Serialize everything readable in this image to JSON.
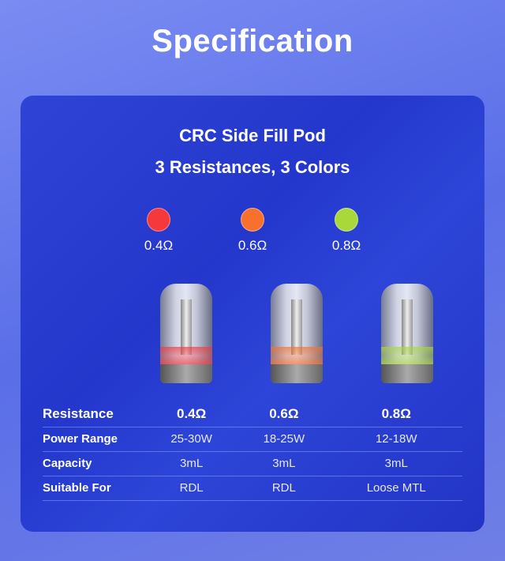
{
  "title": "Specification",
  "card": {
    "subtitle1": "CRC Side Fill Pod",
    "subtitle2": "3 Resistances, 3 Colors"
  },
  "variants": [
    {
      "resistance": "0.4Ω",
      "color": "#f5383c"
    },
    {
      "resistance": "0.6Ω",
      "color": "#f7702e"
    },
    {
      "resistance": "0.8Ω",
      "color": "#a8d83a"
    }
  ],
  "pod_logo": "NPU",
  "table": {
    "rows": [
      {
        "label": "Resistance",
        "values": [
          "0.4Ω",
          "0.6Ω",
          "0.8Ω"
        ]
      },
      {
        "label": "Power Range",
        "values": [
          "25-30W",
          "18-25W",
          "12-18W"
        ]
      },
      {
        "label": "Capacity",
        "values": [
          "3mL",
          "3mL",
          "3mL"
        ]
      },
      {
        "label": "Suitable For",
        "values": [
          "RDL",
          "RDL",
          "Loose MTL"
        ]
      }
    ]
  }
}
